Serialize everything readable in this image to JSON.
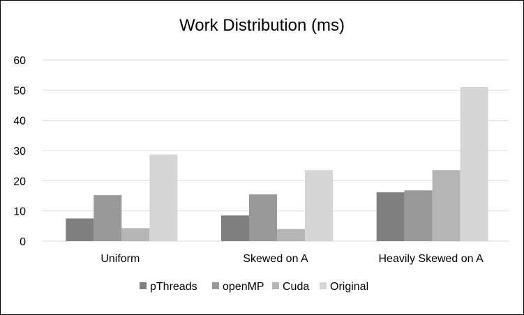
{
  "chart_data": {
    "type": "bar",
    "title": "Work Distribution (ms)",
    "xlabel": "",
    "ylabel": "",
    "categories": [
      "Uniform",
      "Skewed on A",
      "Heavily Skewed on A"
    ],
    "series": [
      {
        "name": "pThreads",
        "color": "#7f7f7f",
        "values": [
          7.5,
          8.5,
          16.2
        ]
      },
      {
        "name": "openMP",
        "color": "#999999",
        "values": [
          15.2,
          15.5,
          16.8
        ]
      },
      {
        "name": "Cuda",
        "color": "#b5b5b5",
        "values": [
          4.3,
          4.0,
          23.5
        ]
      },
      {
        "name": "Original",
        "color": "#d6d6d6",
        "values": [
          28.7,
          23.5,
          51.0
        ]
      }
    ],
    "ylim": [
      0,
      60
    ],
    "yticks": [
      0,
      10,
      20,
      30,
      40,
      50,
      60
    ],
    "grid": true,
    "legend_position": "bottom",
    "gridline_color": "#d9d9d9"
  }
}
